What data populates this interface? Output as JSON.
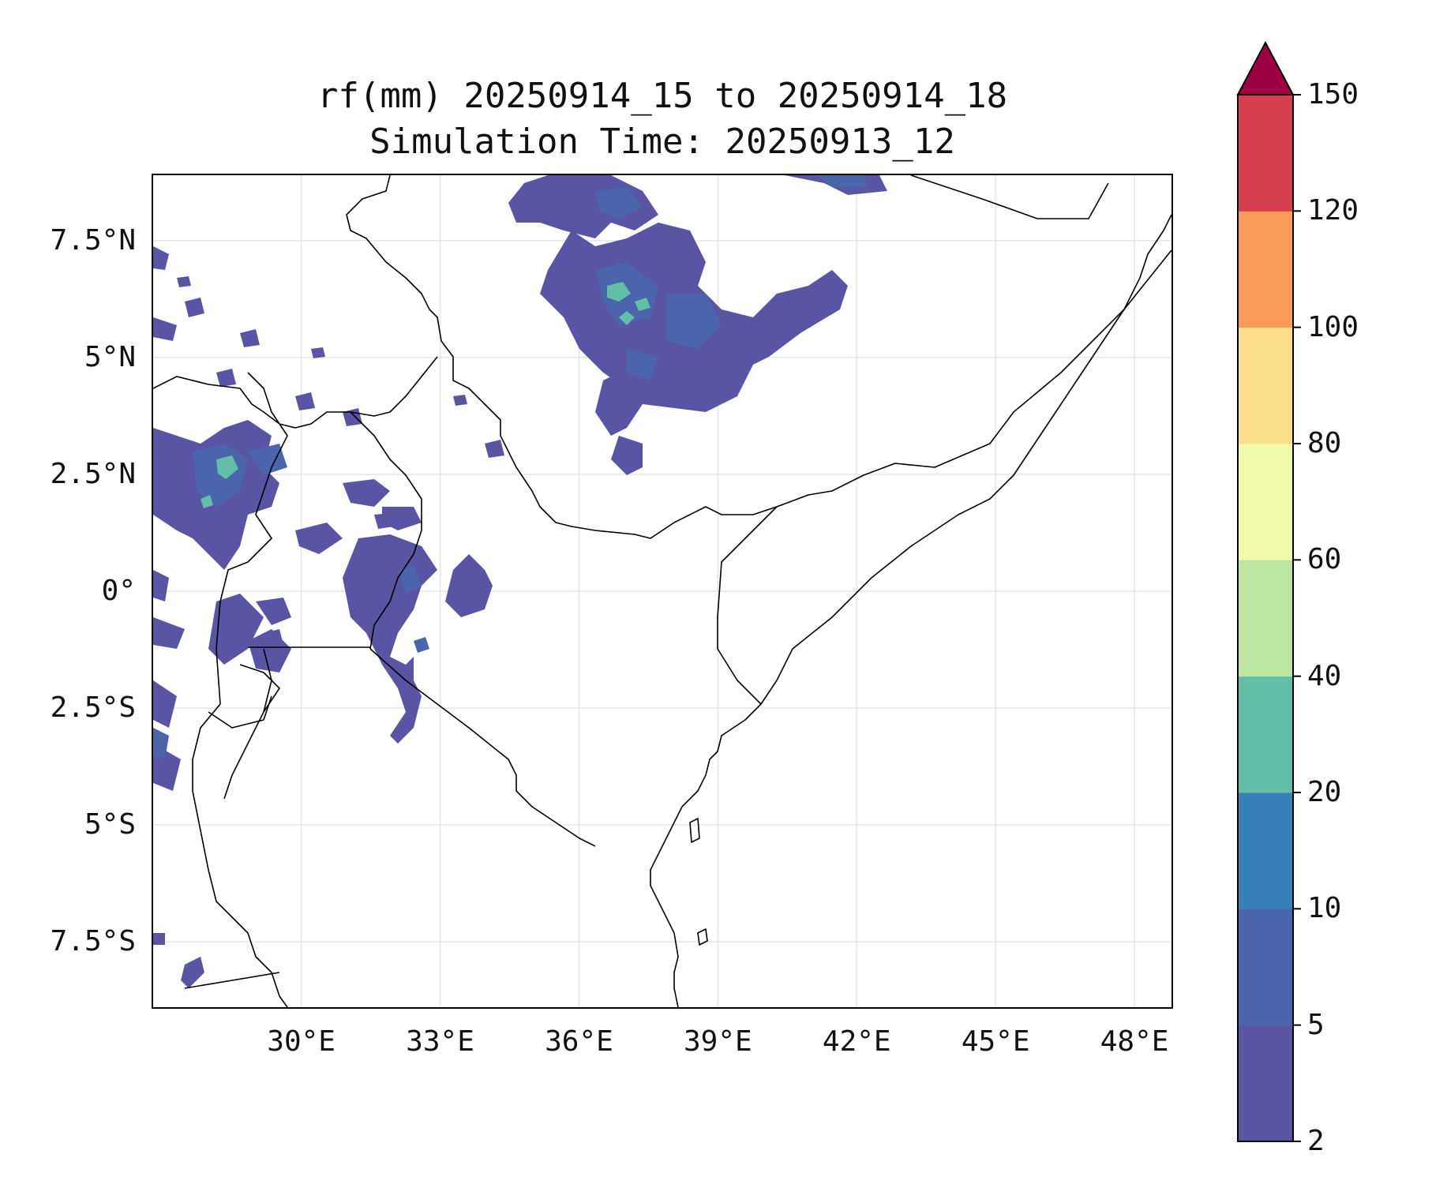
{
  "title": {
    "line1": "rf(mm) 20250914_15 to 20250914_18",
    "line2": "Simulation Time: 20250913_12"
  },
  "map": {
    "lon_range": [
      26.8,
      48.8
    ],
    "lat_range": [
      -8.9,
      8.9
    ],
    "lon_ticks": [
      {
        "value": 30,
        "label": "30°E"
      },
      {
        "value": 33,
        "label": "33°E"
      },
      {
        "value": 36,
        "label": "36°E"
      },
      {
        "value": 39,
        "label": "39°E"
      },
      {
        "value": 42,
        "label": "42°E"
      },
      {
        "value": 45,
        "label": "45°E"
      },
      {
        "value": 48,
        "label": "48°E"
      }
    ],
    "lat_ticks": [
      {
        "value": 7.5,
        "label": "7.5°N"
      },
      {
        "value": 5,
        "label": "5°N"
      },
      {
        "value": 2.5,
        "label": "2.5°N"
      },
      {
        "value": 0,
        "label": "0°"
      },
      {
        "value": -2.5,
        "label": "2.5°S"
      },
      {
        "value": -5,
        "label": "5°S"
      },
      {
        "value": -7.5,
        "label": "7.5°S"
      }
    ],
    "gridlines": true
  },
  "colorbar": {
    "levels": [
      "2",
      "5",
      "10",
      "20",
      "40",
      "60",
      "80",
      "100",
      "120",
      "150"
    ],
    "colors": [
      "#5954a4",
      "#4b65ad",
      "#3980b9",
      "#62bea6",
      "#bde4a0",
      "#f1f9aa",
      "#fcde8a",
      "#f99c5a",
      "#d53e4f"
    ],
    "extend_color": "#9e0142",
    "extend": "max"
  }
}
